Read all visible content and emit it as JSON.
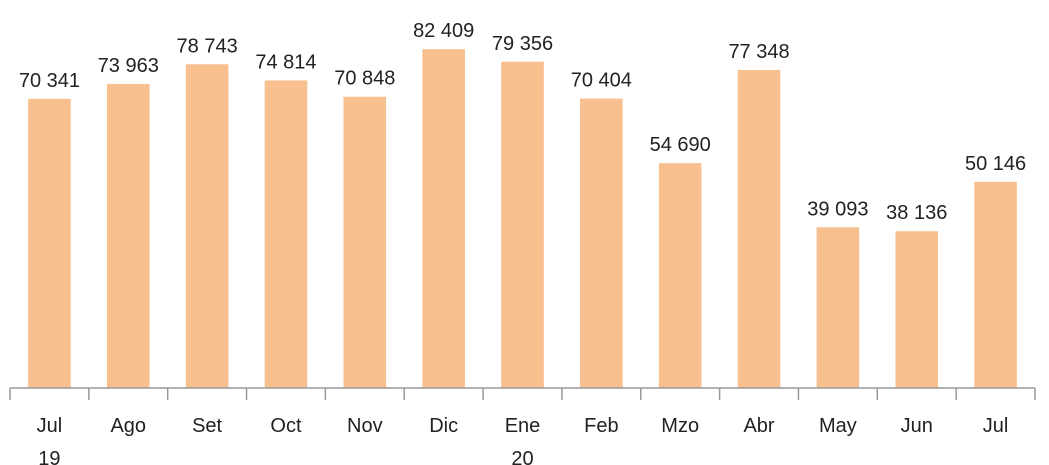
{
  "chart_data": {
    "type": "bar",
    "categories": [
      "Jul\n19",
      "Ago",
      "Set",
      "Oct",
      "Nov",
      "Dic",
      "Ene\n20",
      "Feb",
      "Mzo",
      "Abr",
      "May",
      "Jun",
      "Jul"
    ],
    "values": [
      70341,
      73963,
      78743,
      74814,
      70848,
      82409,
      79356,
      70404,
      54690,
      77348,
      39093,
      38136,
      50146
    ],
    "value_labels": [
      "70 341",
      "73 963",
      "78 743",
      "74 814",
      "70 848",
      "82 409",
      "79 356",
      "70 404",
      "54 690",
      "77 348",
      "39 093",
      "38 136",
      "50 146"
    ],
    "color": "#f8bf8f",
    "ylim": [
      0,
      90000
    ]
  }
}
